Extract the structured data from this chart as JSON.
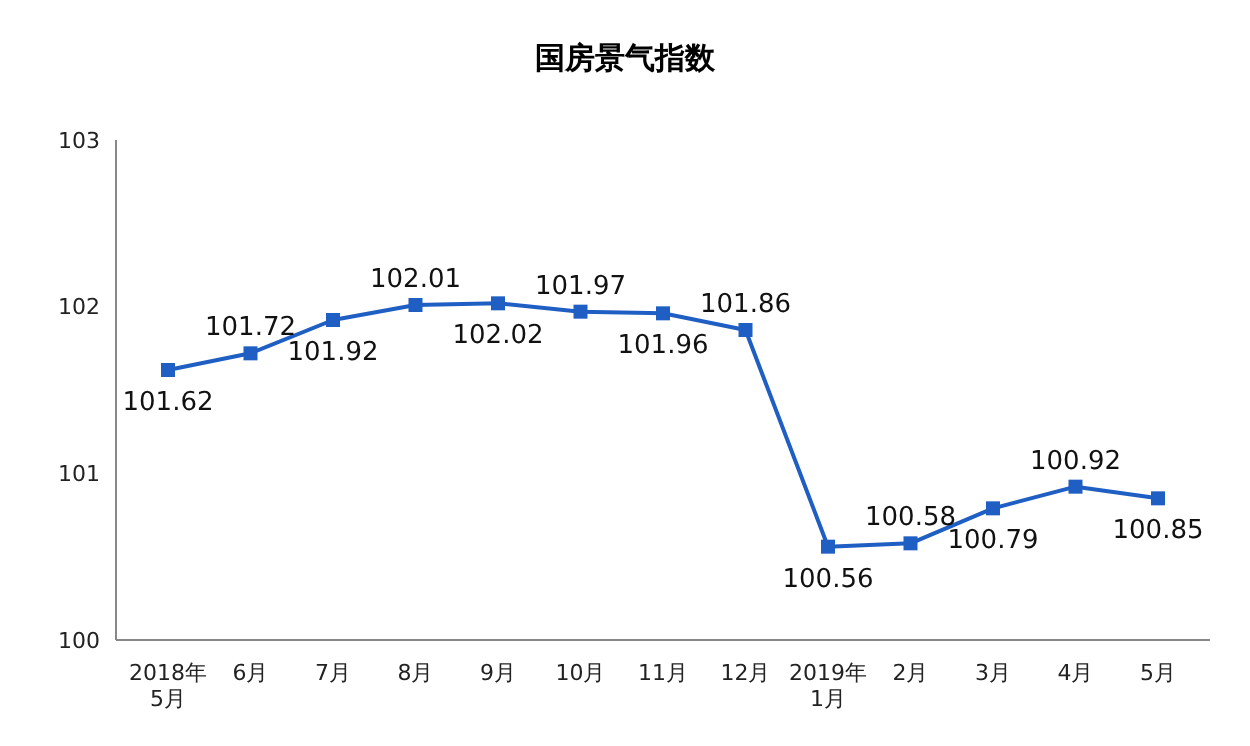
{
  "chart_data": {
    "type": "line",
    "title": "国房景气指数",
    "categories": [
      "2018年\n5月",
      "6月",
      "7月",
      "8月",
      "9月",
      "10月",
      "11月",
      "12月",
      "2019年\n1月",
      "2月",
      "3月",
      "4月",
      "5月"
    ],
    "series": [
      {
        "color": "#1f5fc4",
        "values": [
          101.62,
          101.72,
          101.92,
          102.01,
          102.02,
          101.97,
          101.96,
          101.86,
          100.56,
          100.58,
          100.79,
          100.92,
          100.85
        ]
      }
    ],
    "ylim": [
      100,
      103
    ],
    "yticks": [
      100,
      101,
      102,
      103
    ],
    "marker": "square",
    "line_style": "solid",
    "data_labels": true
  }
}
